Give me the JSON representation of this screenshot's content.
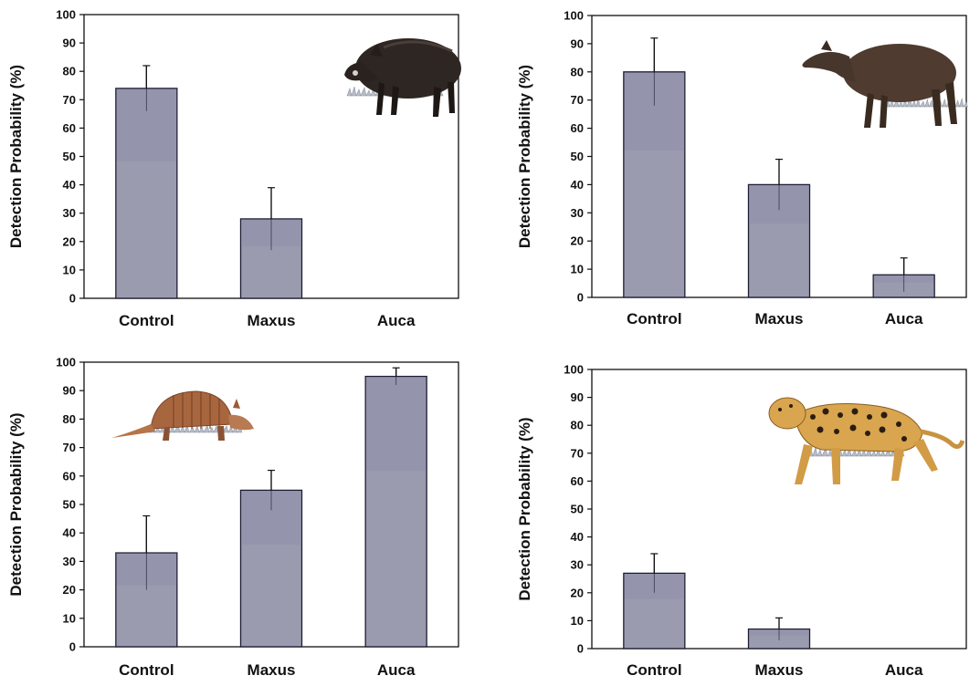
{
  "chart_data": [
    {
      "type": "bar",
      "panel": "top-left",
      "animal_icon": "peccary-illustration",
      "categories": [
        "Control",
        "Maxus",
        "Auca"
      ],
      "values": [
        74,
        28,
        0
      ],
      "errors": [
        8,
        11,
        0
      ],
      "ylabel": "Detection Probability (%)",
      "ylim": [
        0,
        100
      ],
      "yticks": [
        0,
        10,
        20,
        30,
        40,
        50,
        60,
        70,
        80,
        90,
        100
      ],
      "grid": false
    },
    {
      "type": "bar",
      "panel": "top-right",
      "animal_icon": "tapir-illustration",
      "categories": [
        "Control",
        "Maxus",
        "Auca"
      ],
      "values": [
        80,
        40,
        8
      ],
      "errors": [
        12,
        9,
        6
      ],
      "ylabel": "Detection Probability (%)",
      "ylim": [
        0,
        100
      ],
      "yticks": [
        0,
        10,
        20,
        30,
        40,
        50,
        60,
        70,
        80,
        90,
        100
      ],
      "grid": false
    },
    {
      "type": "bar",
      "panel": "bottom-left",
      "animal_icon": "armadillo-illustration",
      "categories": [
        "Control",
        "Maxus",
        "Auca"
      ],
      "values": [
        33,
        55,
        95
      ],
      "errors": [
        13,
        7,
        3
      ],
      "ylabel": "Detection Probability (%)",
      "ylim": [
        0,
        100
      ],
      "yticks": [
        0,
        10,
        20,
        30,
        40,
        50,
        60,
        70,
        80,
        90,
        100
      ],
      "grid": false
    },
    {
      "type": "bar",
      "panel": "bottom-right",
      "animal_icon": "jaguar-illustration",
      "categories": [
        "Control",
        "Maxus",
        "Auca"
      ],
      "values": [
        27,
        7,
        0
      ],
      "errors": [
        7,
        4,
        0
      ],
      "ylabel": "Detection Probability (%)",
      "ylim": [
        0,
        100
      ],
      "yticks": [
        0,
        10,
        20,
        30,
        40,
        50,
        60,
        70,
        80,
        90,
        100
      ],
      "grid": false
    }
  ],
  "colors": {
    "bar_fill": "#9b9bb0",
    "bar_top": "#8e8eab",
    "bar_stroke": "#1d1d33",
    "axis": "#111111"
  }
}
